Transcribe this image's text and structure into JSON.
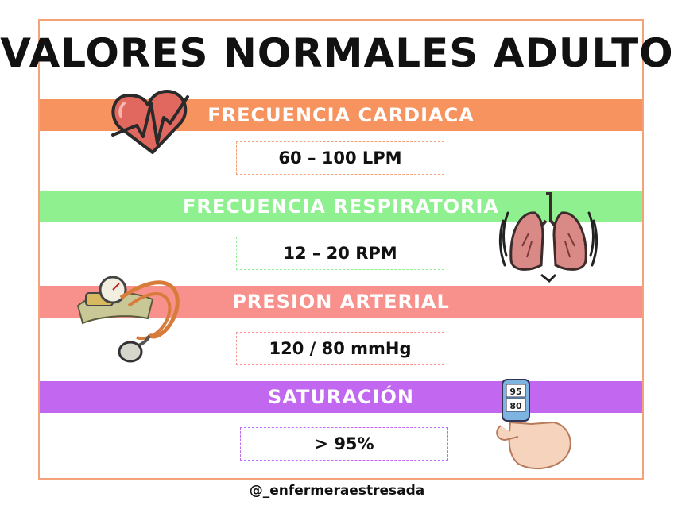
{
  "title": "VALORES NORMALES ADULTO",
  "sections": [
    {
      "label": "FRECUENCIA CARDIACA",
      "value": "60 – 100 LPM",
      "color": "#f6935f",
      "border": "#f4a27a"
    },
    {
      "label": "FRECUENCIA RESPIRATORIA",
      "value": "12 – 20 RPM",
      "color": "#8ff08f",
      "border": "#8ff08f"
    },
    {
      "label": "PRESION ARTERIAL",
      "value": "120 / 80 mmHg",
      "color": "#f8908c",
      "border": "#f8908c"
    },
    {
      "label": "SATURACIÓN",
      "value": "> 95%",
      "color": "#c167f0",
      "border": "#c167f0"
    }
  ],
  "oximeter_reading": {
    "top": "95",
    "bottom": "80"
  },
  "footer": "@_enfermeraestresada",
  "icons": [
    "heart-icon",
    "lungs-icon",
    "sphygmomanometer-icon",
    "pulse-oximeter-icon"
  ]
}
